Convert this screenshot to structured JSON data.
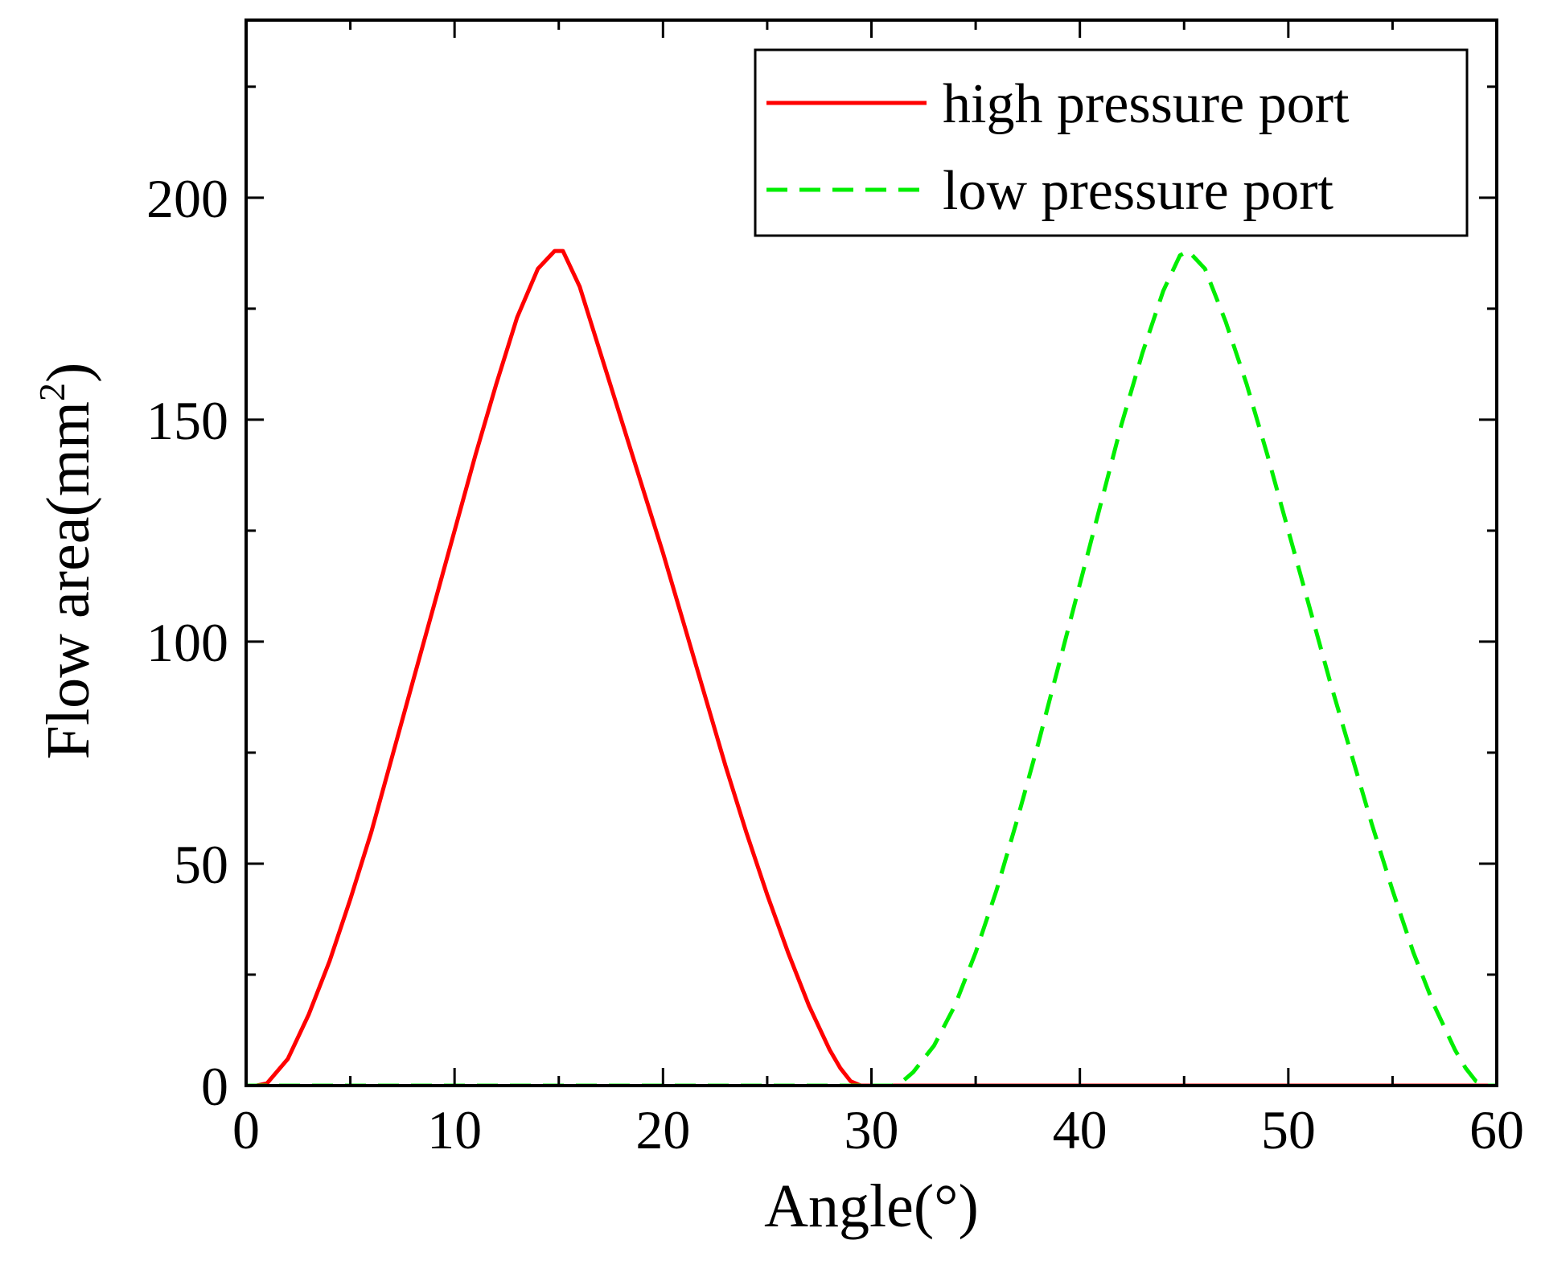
{
  "colors": {
    "high_pressure": "#ff0000",
    "low_pressure": "#00ee00",
    "axis": "#000000",
    "background": "#ffffff"
  },
  "chart_data": {
    "type": "line",
    "title": "",
    "xlabel": "Angle(°)",
    "ylabel_prefix": "Flow area(mm",
    "ylabel_sup": "2",
    "ylabel_suffix": ")",
    "xlim": [
      0,
      60
    ],
    "ylim": [
      0,
      240
    ],
    "xticks": [
      0,
      10,
      20,
      30,
      40,
      50,
      60
    ],
    "xtick_labels": [
      "0",
      "10",
      "20",
      "30",
      "40",
      "50",
      "60"
    ],
    "xminor": [
      5,
      15,
      25,
      35,
      45,
      55
    ],
    "yticks": [
      0,
      50,
      100,
      150,
      200
    ],
    "ytick_labels": [
      "0",
      "50",
      "100",
      "150",
      "200"
    ],
    "yminor": [
      25,
      75,
      125,
      175,
      225
    ],
    "grid": false,
    "legend_position": "top-right",
    "series": [
      {
        "name": "high pressure port",
        "style": "solid",
        "x": [
          0,
          0.5,
          1,
          2,
          3,
          4,
          5,
          6,
          7,
          8,
          9,
          10,
          11,
          12,
          13,
          14,
          14.8,
          15.2,
          16,
          17,
          18,
          19,
          20,
          21,
          22,
          23,
          24,
          25,
          26,
          27,
          28,
          28.5,
          29,
          29.5,
          30,
          35,
          40,
          45,
          50,
          55,
          60
        ],
        "y": [
          0,
          0,
          0.5,
          6,
          16,
          28,
          42,
          57,
          74,
          91,
          108,
          125,
          142,
          158,
          173,
          184,
          188,
          188,
          180,
          165,
          150,
          135,
          120,
          104,
          88,
          72,
          57,
          43,
          30,
          18,
          8,
          4,
          1,
          0,
          0,
          0,
          0,
          0,
          0,
          0,
          0
        ]
      },
      {
        "name": "low pressure port",
        "style": "dashed",
        "x": [
          0,
          5,
          10,
          15,
          20,
          25,
          30,
          31,
          31.5,
          32,
          33,
          34,
          35,
          36,
          37,
          38,
          39,
          40,
          41,
          42,
          43,
          44,
          44.8,
          45.2,
          46,
          47,
          48,
          49,
          50,
          51,
          52,
          53,
          54,
          55,
          56,
          57,
          58,
          58.5,
          59,
          59.5,
          60
        ],
        "y": [
          0,
          0,
          0,
          0,
          0,
          0,
          0,
          0,
          1,
          3,
          9,
          18,
          30,
          44,
          60,
          77,
          95,
          113,
          131,
          149,
          165,
          179,
          187,
          188,
          184,
          172,
          158,
          142,
          125,
          108,
          91,
          75,
          59,
          44,
          30,
          18,
          8,
          4,
          1,
          0,
          0
        ]
      }
    ]
  }
}
